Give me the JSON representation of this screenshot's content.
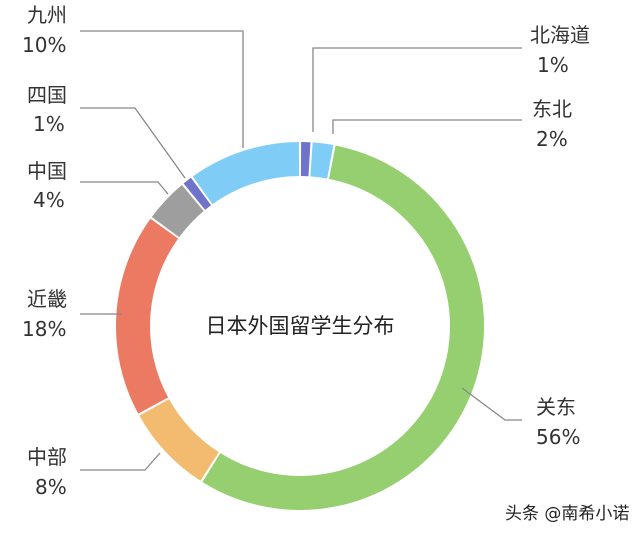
{
  "chart_data": {
    "type": "donut",
    "title": "日本外国留学生分布",
    "slices": [
      {
        "name": "北海道",
        "label": "1%",
        "value": 1,
        "color": "#6f73c9"
      },
      {
        "name": "东北",
        "label": "2%",
        "value": 2,
        "color": "#7fcdf7"
      },
      {
        "name": "关东",
        "label": "56%",
        "value": 56,
        "color": "#96cf6f"
      },
      {
        "name": "中部",
        "label": "8%",
        "value": 8,
        "color": "#f3bb70"
      },
      {
        "name": "近畿",
        "label": "18%",
        "value": 18,
        "color": "#ec7a63"
      },
      {
        "name": "中国",
        "label": "4%",
        "value": 4,
        "color": "#9e9e9e"
      },
      {
        "name": "四国",
        "label": "1%",
        "value": 1,
        "color": "#6f73c9"
      },
      {
        "name": "九州",
        "label": "10%",
        "value": 10,
        "color": "#7fcdf7"
      }
    ]
  },
  "watermark": "头条 @南希小诺"
}
